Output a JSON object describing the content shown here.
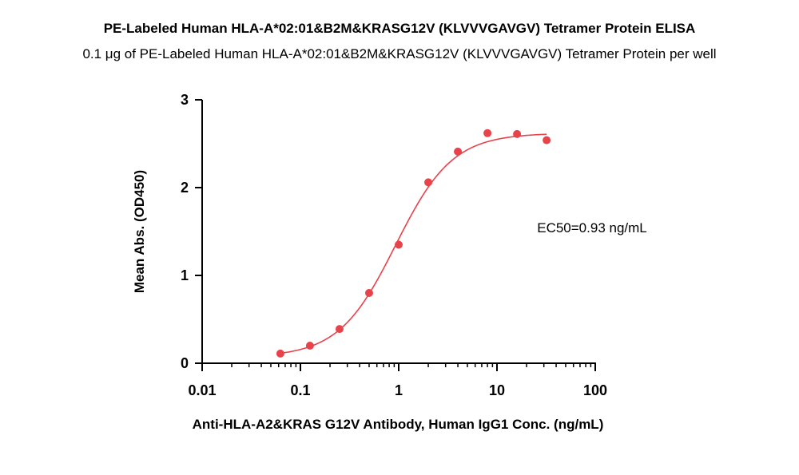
{
  "chart_data": {
    "type": "scatter",
    "title": "PE-Labeled Human HLA-A*02:01&B2M&KRASG12V (KLVVVGAVGV) Tetramer Protein ELISA",
    "subtitle": "0.1 μg of PE-Labeled Human HLA-A*02:01&B2M&KRASG12V (KLVVVGAVGV) Tetramer Protein per well",
    "xlabel": "Anti-HLA-A2&KRAS G12V Antibody, Human IgG1 Conc. (ng/mL)",
    "ylabel": "Mean Abs. (OD450)",
    "x_scale": "log",
    "xlim": [
      0.01,
      100
    ],
    "ylim": [
      0,
      3
    ],
    "x_ticks": [
      "0.01",
      "0.1",
      "1",
      "10",
      "100"
    ],
    "y_ticks": [
      "0",
      "1",
      "2",
      "3"
    ],
    "series": [
      {
        "x": [
          0.0625,
          0.125,
          0.25,
          0.5,
          1,
          2,
          4,
          8,
          16,
          32
        ],
        "y": [
          0.11,
          0.2,
          0.39,
          0.8,
          1.35,
          2.06,
          2.41,
          2.62,
          2.61,
          2.54
        ]
      }
    ],
    "fit_curve": {
      "bottom": 0.07,
      "top": 2.62,
      "ec50": 0.93,
      "hill": 1.5
    },
    "annotation": "EC50=0.93 ng/mL",
    "grid": false,
    "color": "#e8434a"
  }
}
